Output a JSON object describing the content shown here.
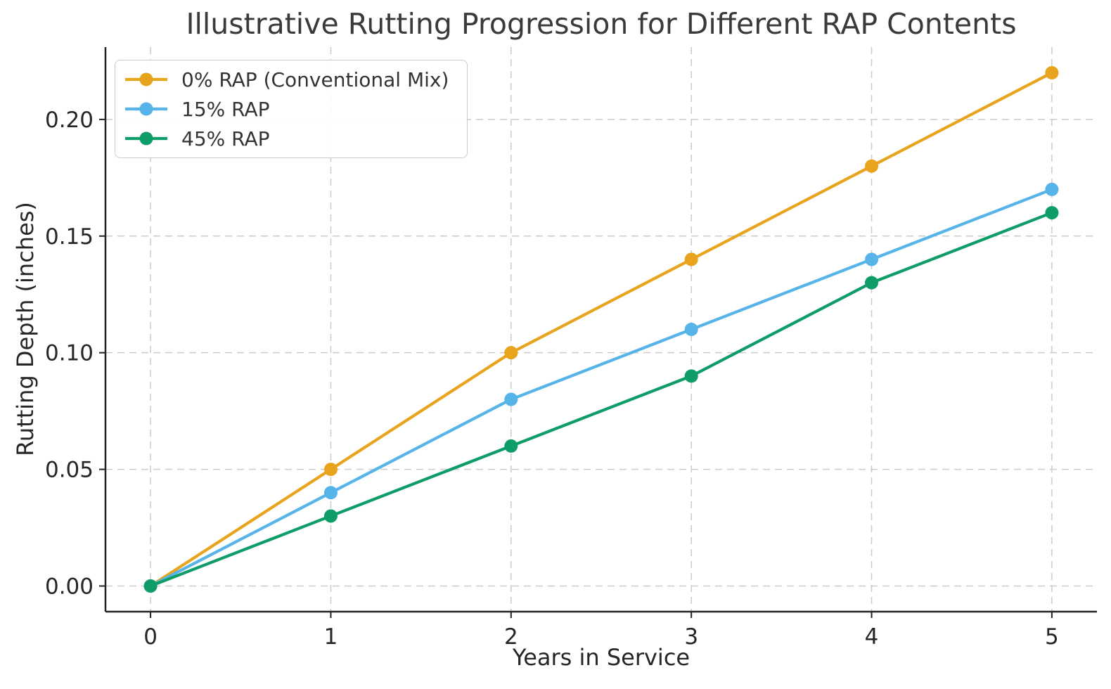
{
  "chart_data": {
    "type": "line",
    "title": "Illustrative Rutting Progression for Different RAP Contents",
    "xlabel": "Years in Service",
    "ylabel": "Rutting Depth (inches)",
    "x": [
      0,
      1,
      2,
      3,
      4,
      5
    ],
    "x_tick_labels": [
      "0",
      "1",
      "2",
      "3",
      "4",
      "5"
    ],
    "y_tick_values": [
      0.0,
      0.05,
      0.1,
      0.15,
      0.2
    ],
    "y_tick_labels": [
      "0.00",
      "0.05",
      "0.10",
      "0.15",
      "0.20"
    ],
    "xlim": [
      -0.25,
      5.25
    ],
    "ylim": [
      -0.011,
      0.231
    ],
    "grid": true,
    "grid_style": "dashed",
    "legend_position": "upper-left",
    "series": [
      {
        "name": "0% RAP (Conventional Mix)",
        "color": "#E8A41C",
        "values": [
          0.0,
          0.05,
          0.1,
          0.14,
          0.18,
          0.22
        ]
      },
      {
        "name": "15% RAP",
        "color": "#56B4E9",
        "values": [
          0.0,
          0.04,
          0.08,
          0.11,
          0.14,
          0.17
        ]
      },
      {
        "name": "45% RAP",
        "color": "#0E9D68",
        "values": [
          0.0,
          0.03,
          0.06,
          0.09,
          0.13,
          0.16
        ]
      }
    ],
    "colors": {
      "grid": "#cbcbcb",
      "spine": "#222222",
      "tick_label": "#262626",
      "title": "#3a3a3a",
      "legend_border": "#cccccc",
      "background": "#ffffff"
    }
  }
}
